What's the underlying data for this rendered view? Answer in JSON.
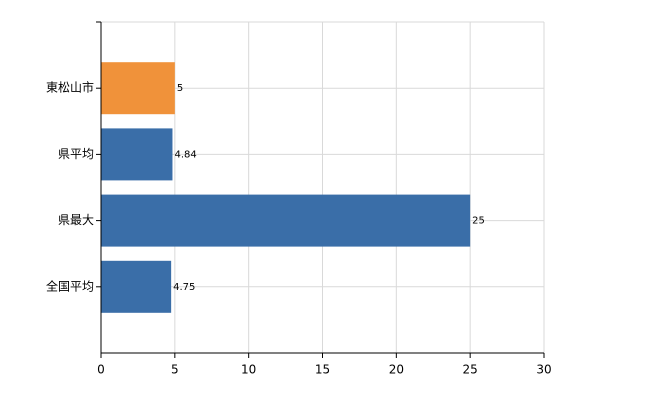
{
  "chart_data": {
    "type": "bar",
    "orientation": "horizontal",
    "categories": [
      "東松山市",
      "県平均",
      "県最大",
      "全国平均"
    ],
    "values": [
      5,
      4.84,
      25,
      4.75
    ],
    "colors": [
      "#f0923a",
      "#3a6ea8",
      "#3a6ea8",
      "#3a6ea8"
    ],
    "xlim": [
      0,
      30
    ],
    "xticks": [
      0,
      5,
      10,
      15,
      20,
      25,
      30
    ],
    "grid": true
  }
}
